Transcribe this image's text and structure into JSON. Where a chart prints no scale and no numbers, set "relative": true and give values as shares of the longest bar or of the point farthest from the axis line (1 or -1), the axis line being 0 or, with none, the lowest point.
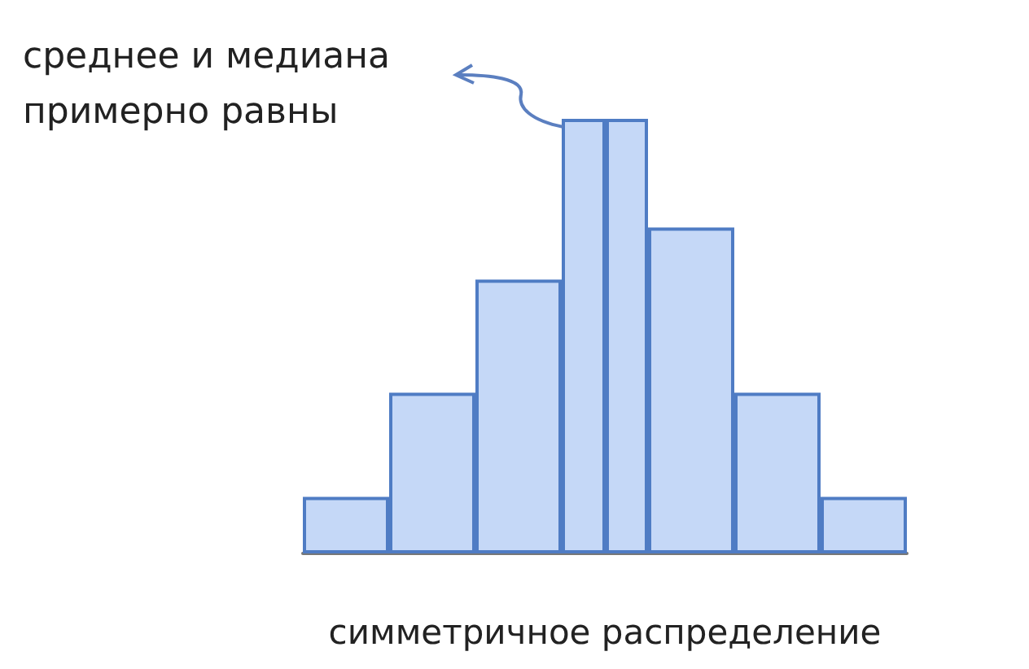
{
  "chart_data": {
    "type": "bar",
    "relative": true,
    "categories": [
      null,
      null,
      null,
      null,
      null,
      null,
      null
    ],
    "values": [
      0.13,
      0.37,
      0.63,
      1,
      0.75,
      0.37,
      0.13
    ],
    "color": "#c5d8f7",
    "grid": false,
    "xlabel": "симметричное распределение",
    "ref_lines": [
      {
        "axis": "x",
        "color": "#4f7cc4"
      }
    ],
    "annotations": [
      "среднее и медиана\nпримерно равны"
    ]
  }
}
